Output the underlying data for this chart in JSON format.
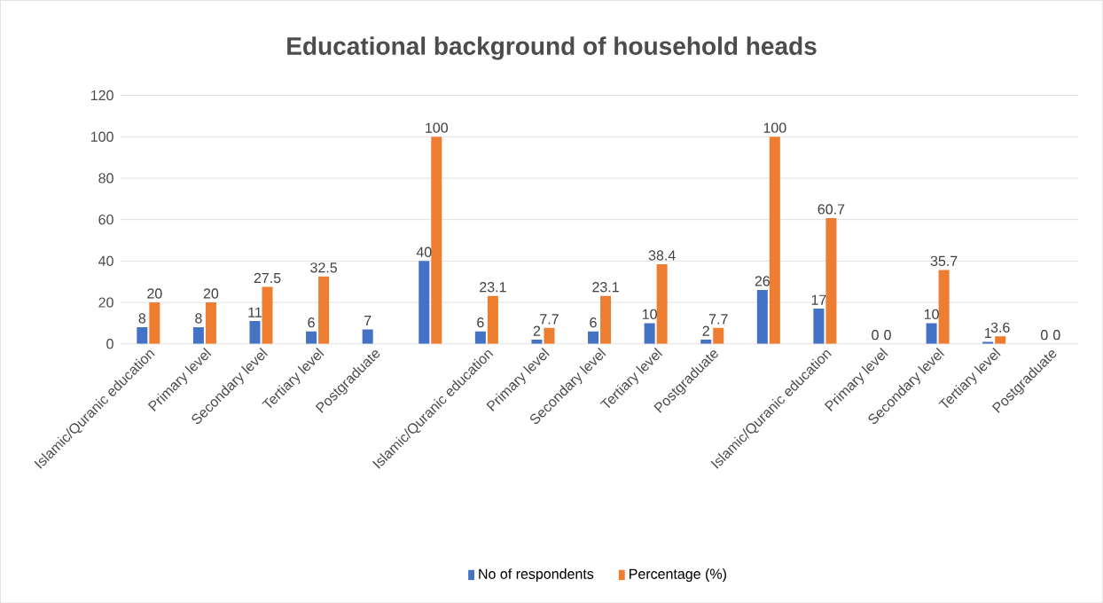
{
  "chart_data": {
    "type": "bar",
    "title": "Educational background of household heads",
    "categories": [
      "Islamic/Quranic education",
      "Primary level",
      "Secondary level",
      "Tertiary level",
      "Postgraduate",
      null,
      "Islamic/Quranic education",
      "Primary level",
      "Secondary level",
      "Tertiary level",
      "Postgraduate",
      null,
      "Islamic/Quranic education",
      "Primary level",
      "Secondary level",
      "Tertiary level",
      "Postgraduate"
    ],
    "series": [
      {
        "name": "No of respondents",
        "color": "#4472c4",
        "values": [
          8,
          8,
          11,
          6,
          7,
          40,
          6,
          2,
          6,
          10,
          2,
          26,
          17,
          0,
          10,
          1,
          0
        ]
      },
      {
        "name": "Percentage (%)",
        "color": "#ed7d31",
        "values": [
          20,
          20,
          27.5,
          32.5,
          null,
          100,
          23.1,
          7.7,
          23.1,
          38.4,
          7.7,
          100,
          60.7,
          0,
          35.7,
          3.6,
          0
        ]
      }
    ],
    "ylim": [
      0,
      120
    ],
    "yticks": [
      0,
      20,
      40,
      60,
      80,
      100,
      120
    ],
    "grid": "y",
    "legend": "bottom",
    "data_labels": true
  }
}
